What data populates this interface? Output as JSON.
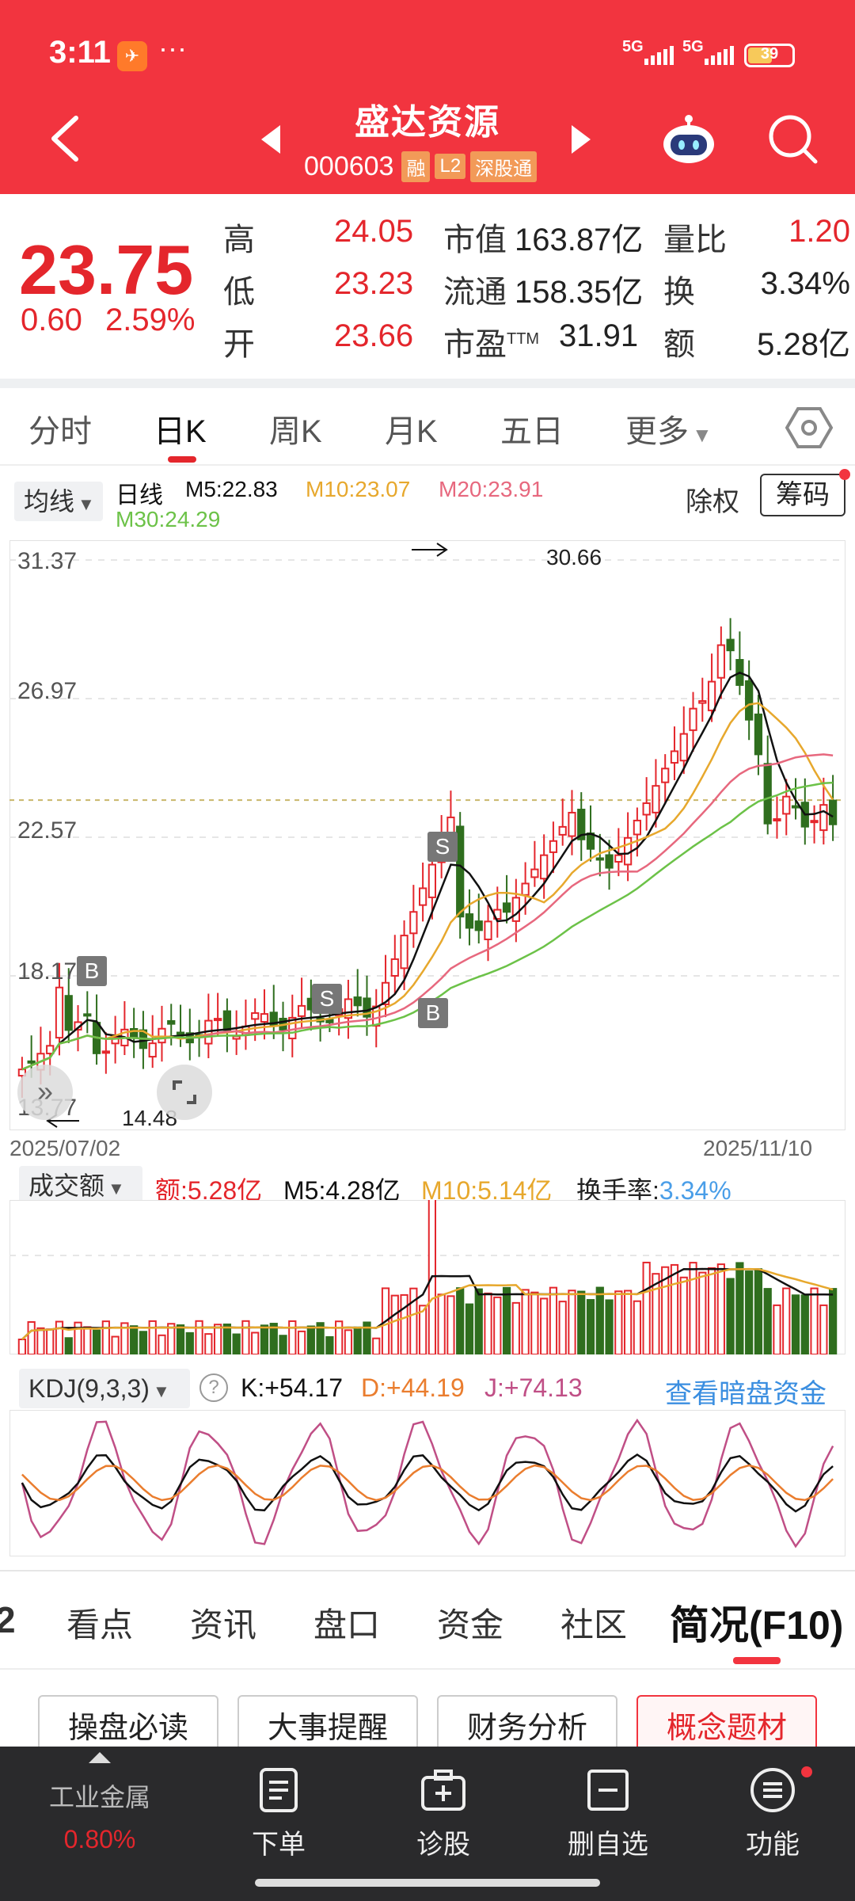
{
  "status_bar": {
    "time": "3:11",
    "dots": "···",
    "net1": "5G",
    "net2": "5G",
    "battery": "39"
  },
  "header": {
    "stock_name": "盛达资源",
    "stock_code": "000603",
    "tags": [
      "融",
      "L2",
      "深股通"
    ]
  },
  "quote": {
    "price": "23.75",
    "change": "0.60",
    "change_pct": "2.59%",
    "high_label": "高",
    "high": "24.05",
    "low_label": "低",
    "low": "23.23",
    "open_label": "开",
    "open": "23.66",
    "mktcap_label": "市值",
    "mktcap": "163.87亿",
    "float_label": "流通",
    "float": "158.35亿",
    "pe_label": "市盈",
    "pe_sup": "TTM",
    "pe": "31.91",
    "volratio_label": "量比",
    "volratio": "1.20",
    "turnover_label": "换",
    "turnover": "3.34%",
    "amount_label": "额",
    "amount": "5.28亿"
  },
  "period_tabs": [
    "分时",
    "日K",
    "周K",
    "月K",
    "五日",
    "更多"
  ],
  "period_active": 1,
  "ma_legend": {
    "button": "均线",
    "type": "日线",
    "m5": "M5:22.83",
    "m10": "M10:23.07",
    "m20": "M20:23.91",
    "m30": "M30:24.29",
    "chuquan": "除权",
    "chouma": "筹码"
  },
  "colors": {
    "up": "#e4262c",
    "down": "#2f6e1e",
    "m5": "#111111",
    "m10": "#e7a82d",
    "m20": "#e7687e",
    "m30": "#6cc248",
    "kdj_k": "#111111",
    "kdj_d": "#ea7d2e",
    "kdj_j": "#c04f86"
  },
  "kchart": {
    "y_labels": [
      "31.37",
      "26.97",
      "22.57",
      "18.17",
      "13.77"
    ],
    "date_start": "2025/07/02",
    "date_end": "2025/11/10",
    "max_label": "30.66",
    "min_label": "14.48",
    "markers": [
      "B",
      "S",
      "S",
      "B"
    ]
  },
  "volume": {
    "button": "成交额",
    "amount": "额:5.28亿",
    "m5": "M5:4.28亿",
    "m10": "M10:5.14亿",
    "turnover_label": "换手率:",
    "turnover": "3.34%"
  },
  "kdj": {
    "button": "KDJ(9,3,3)",
    "help": "?",
    "k": "K:+54.17",
    "d": "D:+44.19",
    "j": "J:+74.13",
    "link": "查看暗盘资金"
  },
  "bottom_tabs": [
    "2",
    "看点",
    "资讯",
    "盘口",
    "资金",
    "社区",
    "简况(F10)"
  ],
  "f10_buttons": [
    "操盘必读",
    "大事提醒",
    "财务分析",
    "概念题材"
  ],
  "bottom_nav": {
    "sector_name": "工业金属",
    "sector_change": "0.80%",
    "items": [
      "下单",
      "诊股",
      "删自选",
      "功能"
    ]
  }
}
